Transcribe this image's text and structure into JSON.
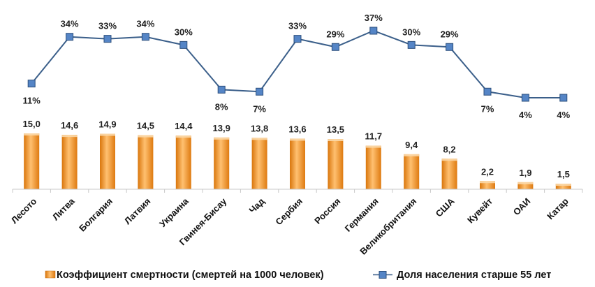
{
  "chart_data": {
    "type": "bar+line",
    "categories": [
      "Лесото",
      "Литва",
      "Болгария",
      "Латвия",
      "Украина",
      "Гвинея-Бисау",
      "Чад",
      "Сербия",
      "Россия",
      "Германия",
      "Великобритания",
      "США",
      "Кувейт",
      "ОАИ",
      "Катар"
    ],
    "series": [
      {
        "name": "Коэффициент смертности (смертей на 1000 человек)",
        "type": "bar",
        "color": "#f39a1f",
        "values": [
          15.0,
          14.6,
          14.9,
          14.5,
          14.4,
          13.9,
          13.8,
          13.6,
          13.5,
          11.7,
          9.4,
          8.2,
          2.2,
          1.9,
          1.5
        ],
        "labels": [
          "15,0",
          "14,6",
          "14,9",
          "14,5",
          "14,4",
          "13,9",
          "13,8",
          "13,6",
          "13,5",
          "11,7",
          "9,4",
          "8,2",
          "2,2",
          "1,9",
          "1,5"
        ]
      },
      {
        "name": "Доля населения старше 55 лет",
        "type": "line",
        "color": "#3b5f8a",
        "marker_color": "#5585c6",
        "values": [
          11,
          34,
          33,
          34,
          30,
          8,
          7,
          33,
          29,
          37,
          30,
          29,
          7,
          4,
          4
        ],
        "labels": [
          "11%",
          "34%",
          "33%",
          "34%",
          "30%",
          "8%",
          "7%",
          "33%",
          "29%",
          "37%",
          "30%",
          "29%",
          "7%",
          "4%",
          "4%"
        ],
        "label_position": [
          "below",
          "above",
          "above",
          "above",
          "above",
          "below",
          "below",
          "above",
          "above",
          "above",
          "above",
          "above",
          "below",
          "below",
          "below"
        ]
      }
    ],
    "bar_axis": {
      "ylim": [
        0,
        15
      ]
    },
    "line_axis": {
      "ylim": [
        4,
        37
      ]
    },
    "grid": false,
    "legend": {
      "placement": "bottom"
    }
  }
}
